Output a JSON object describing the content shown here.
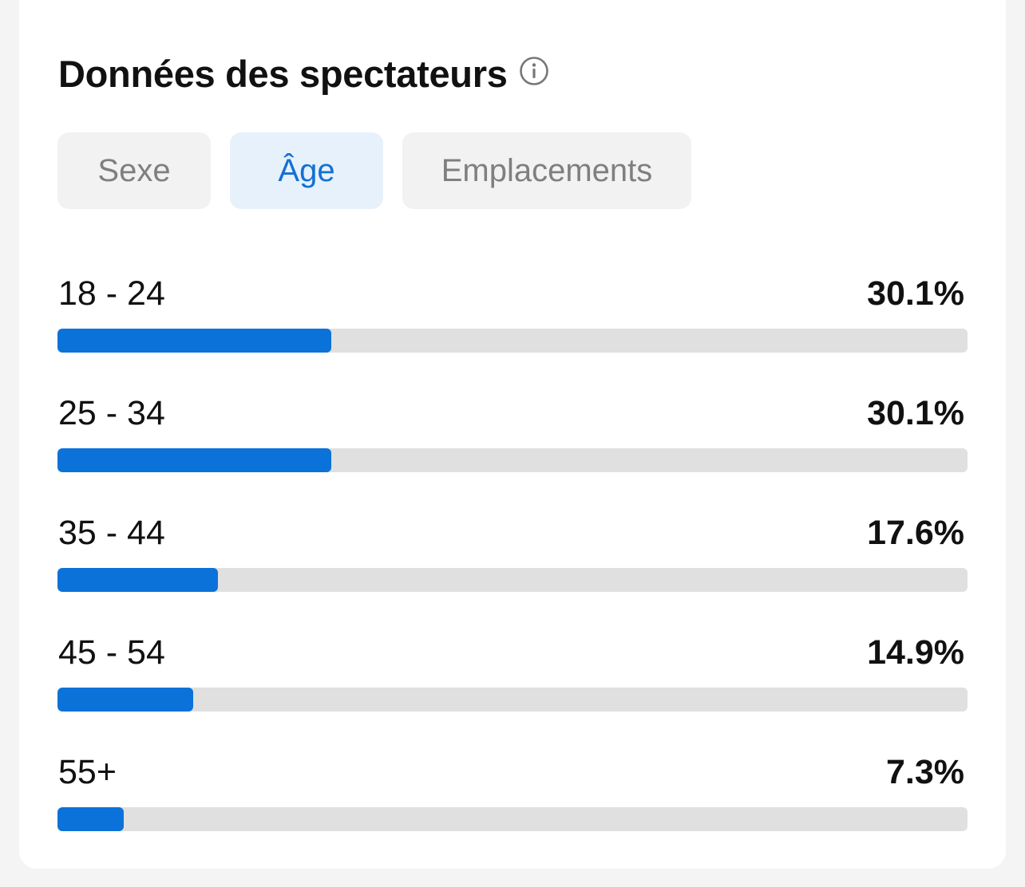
{
  "card": {
    "title": "Données des spectateurs",
    "info_icon": "info-icon"
  },
  "tabs": [
    {
      "label": "Sexe",
      "active": false
    },
    {
      "label": "Âge",
      "active": true
    },
    {
      "label": "Emplacements",
      "active": false
    }
  ],
  "age_groups": [
    {
      "label": "18 - 24",
      "value_text": "30.1%",
      "bar_fraction": 0.301
    },
    {
      "label": "25 - 34",
      "value_text": "30.1%",
      "bar_fraction": 0.301
    },
    {
      "label": "35 - 44",
      "value_text": "17.6%",
      "bar_fraction": 0.176
    },
    {
      "label": "45 - 54",
      "value_text": "14.9%",
      "bar_fraction": 0.149
    },
    {
      "label": "55+",
      "value_text": "7.3%",
      "bar_fraction": 0.073
    }
  ],
  "colors": {
    "accent": "#0b72d9",
    "track": "#e0e0e0",
    "active_tab_bg": "#e6f1fb",
    "active_tab_text": "#1471d2",
    "inactive_tab_bg": "#f2f2f2",
    "inactive_tab_text": "#7f7f7f"
  }
}
